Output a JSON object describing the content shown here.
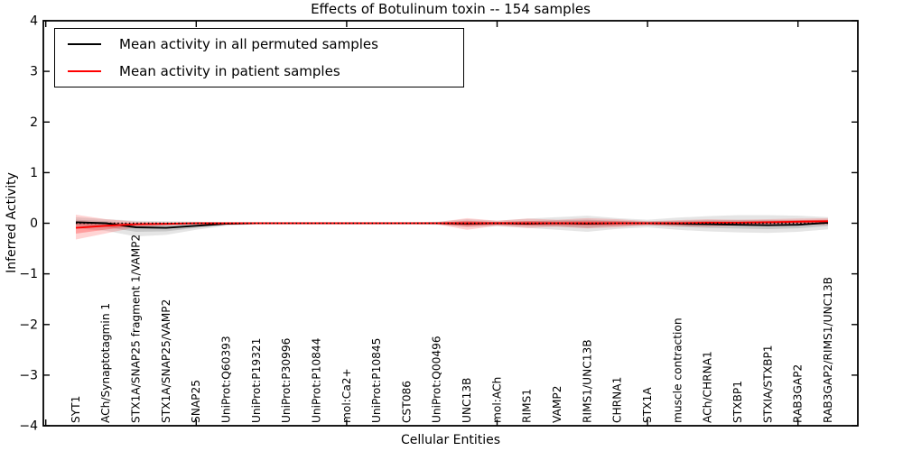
{
  "chart_data": {
    "type": "line",
    "title": "Effects of Botulinum toxin -- 154 samples",
    "xlabel": "Cellular Entities",
    "ylabel": "Inferred Activity",
    "ylim": [
      -4,
      4
    ],
    "yticks": [
      -4,
      -3,
      -2,
      -1,
      0,
      1,
      2,
      3,
      4
    ],
    "ytick_labels": [
      "−4",
      "−3",
      "−2",
      "−1",
      "0",
      "1",
      "2",
      "3",
      "4"
    ],
    "grid": false,
    "legend_position": "upper left",
    "legend": [
      {
        "label": "Mean activity in all permuted samples",
        "color": "#000000"
      },
      {
        "label": "Mean activity in patient samples",
        "color": "#ff0000"
      }
    ],
    "zero_line": {
      "y": 0,
      "style": "dotted",
      "color": "#000000"
    },
    "categories": [
      "SYT1",
      "ACh/Synaptotagmin 1",
      "STX1A/SNAP25 fragment 1/VAMP2",
      "STX1A/SNAP25/VAMP2",
      "SNAP25",
      "UniProt:Q60393",
      "UniProt:P19321",
      "UniProt:P30996",
      "UniProt:P10844",
      "mol:Ca2+",
      "UniProt:P10845",
      "CST086",
      "UniProt:Q00496",
      "UNC13B",
      "mol:ACh",
      "RIMS1",
      "VAMP2",
      "RIMS1/UNC13B",
      "CHRNA1",
      "STX1A",
      "muscle contraction",
      "ACh/CHRNA1",
      "STXBP1",
      "STXIA/STXBP1",
      "RAB3GAP2",
      "RAB3GAP2/RIMS1/UNC13B"
    ],
    "series": [
      {
        "name": "Mean activity in all permuted samples",
        "color": "#000000",
        "band_color": "#000000",
        "values": [
          0.02,
          0.0,
          -0.08,
          -0.09,
          -0.05,
          -0.01,
          0,
          0,
          0,
          0,
          0,
          0,
          0,
          -0.01,
          0,
          -0.01,
          0,
          -0.01,
          0,
          0,
          -0.01,
          -0.02,
          -0.03,
          -0.04,
          -0.03,
          0.01
        ],
        "band_upper": [
          0.12,
          0.08,
          0.05,
          0.04,
          0.03,
          0.02,
          0.02,
          0.02,
          0.02,
          0.02,
          0.02,
          0.02,
          0.03,
          0.08,
          0.05,
          0.09,
          0.12,
          0.15,
          0.1,
          0.07,
          0.11,
          0.14,
          0.16,
          0.16,
          0.15,
          0.12
        ],
        "band_lower": [
          -0.1,
          -0.15,
          -0.26,
          -0.23,
          -0.13,
          -0.05,
          -0.02,
          -0.02,
          -0.02,
          -0.02,
          -0.02,
          -0.02,
          -0.03,
          -0.08,
          -0.06,
          -0.09,
          -0.13,
          -0.17,
          -0.11,
          -0.08,
          -0.13,
          -0.16,
          -0.18,
          -0.19,
          -0.17,
          -0.12
        ]
      },
      {
        "name": "Mean activity in patient samples",
        "color": "#ff0000",
        "band_color": "#ff0000",
        "values": [
          -0.09,
          -0.05,
          -0.02,
          -0.01,
          0,
          0,
          0,
          0,
          0,
          0,
          0,
          0,
          0,
          0,
          0,
          0,
          0,
          0,
          0,
          0,
          0,
          0.01,
          0.01,
          0.02,
          0.03,
          0.04
        ],
        "band_upper": [
          0.17,
          0.08,
          0.03,
          0.02,
          0.01,
          0.01,
          0.01,
          0.01,
          0.01,
          0.01,
          0.01,
          0.01,
          0.02,
          0.1,
          0.05,
          0.09,
          0.07,
          0.1,
          0.08,
          0.04,
          0.06,
          0.08,
          0.07,
          0.08,
          0.09,
          0.1
        ],
        "band_lower": [
          -0.32,
          -0.2,
          -0.08,
          -0.05,
          -0.02,
          -0.01,
          -0.01,
          -0.01,
          -0.01,
          -0.01,
          -0.01,
          -0.01,
          -0.02,
          -0.13,
          -0.05,
          -0.09,
          -0.07,
          -0.1,
          -0.08,
          -0.04,
          -0.06,
          -0.07,
          -0.05,
          -0.04,
          -0.03,
          -0.03
        ]
      }
    ]
  }
}
